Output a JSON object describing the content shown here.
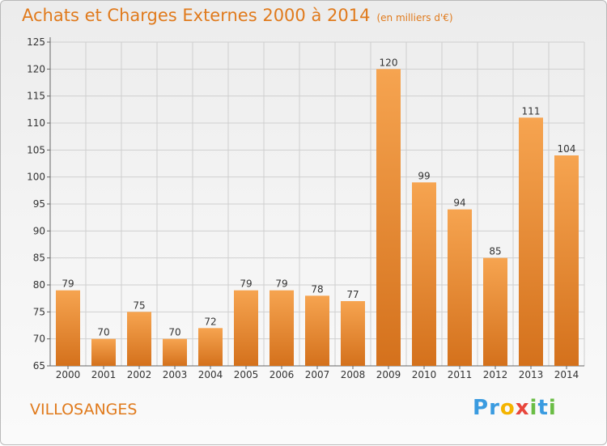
{
  "header": {
    "title": "Achats et Charges Externes 2000 à 2014",
    "subtitle": "(en milliers d'€)"
  },
  "footer": {
    "place": "VILLOSANGES",
    "logo_letters": [
      "P",
      "r",
      "o",
      "x",
      "i",
      "t",
      "i"
    ],
    "logo_colors": [
      "#3a9be0",
      "#3a9be0",
      "#f4b400",
      "#e8463c",
      "#6abd45",
      "#3a9be0",
      "#6abd45"
    ]
  },
  "colors": {
    "bar_top": "#f6a450",
    "bar_bottom": "#d4711c",
    "axis": "#666666",
    "grid": "#cfcfcf",
    "accent": "#e07a1c"
  },
  "chart_data": {
    "type": "bar",
    "categories": [
      "2000",
      "2001",
      "2002",
      "2003",
      "2004",
      "2005",
      "2006",
      "2007",
      "2008",
      "2009",
      "2010",
      "2011",
      "2012",
      "2013",
      "2014"
    ],
    "values": [
      79,
      70,
      75,
      70,
      72,
      79,
      79,
      78,
      77,
      120,
      99,
      94,
      85,
      111,
      104
    ],
    "ylim": [
      65,
      125
    ],
    "yticks": [
      65,
      70,
      75,
      80,
      85,
      90,
      95,
      100,
      105,
      110,
      115,
      120,
      125
    ],
    "grid": true,
    "title": "Achats et Charges Externes 2000 à 2014",
    "xlabel": "",
    "ylabel": ""
  }
}
